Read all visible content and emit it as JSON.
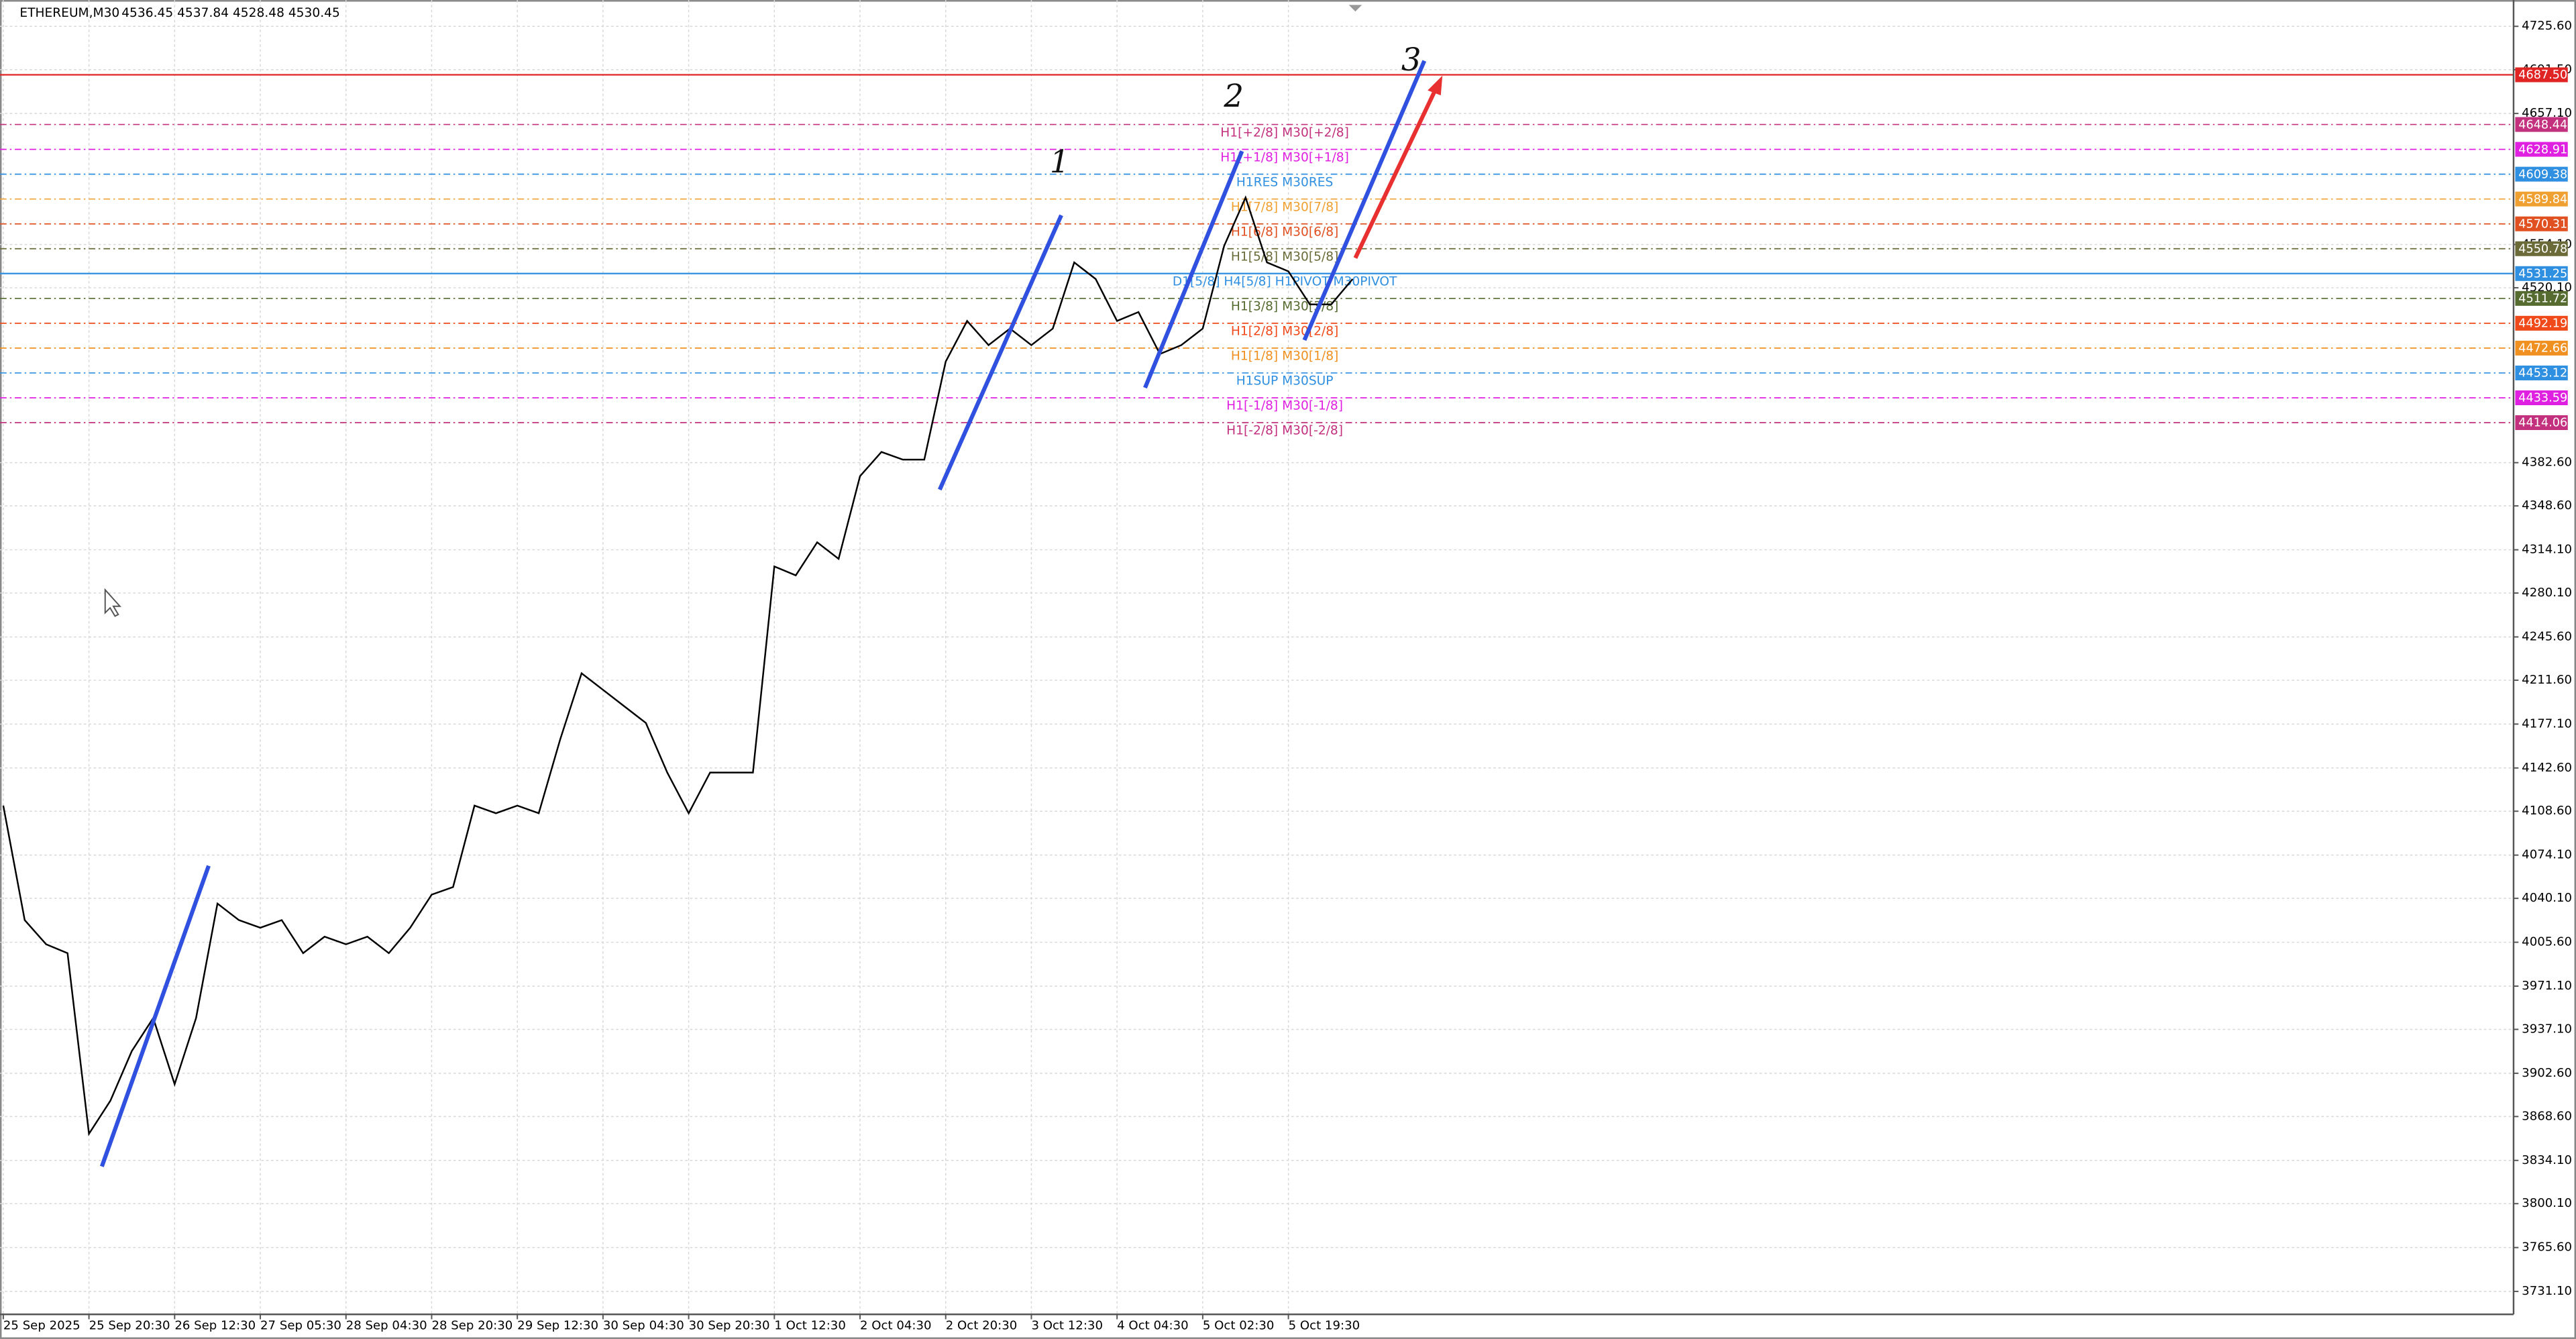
{
  "header": {
    "symbol": "ETHEREUM,M30",
    "ohlc": "4536.45 4537.84 4528.48 4530.45"
  },
  "chart_data": {
    "type": "line",
    "color": "#000000",
    "x": [
      0,
      8,
      16,
      24,
      32,
      40,
      48,
      56,
      64,
      72,
      80,
      88,
      96,
      104,
      112,
      120,
      128,
      136,
      144,
      152,
      160,
      168,
      176,
      184,
      192,
      200,
      208,
      216,
      224,
      232,
      240,
      248,
      256,
      264,
      272,
      280,
      288,
      296,
      304,
      312,
      320,
      328,
      336,
      344,
      352,
      360,
      368,
      376,
      384,
      392,
      400,
      408,
      416,
      424,
      432,
      440,
      448,
      456,
      464,
      472,
      480,
      488,
      496,
      504
    ],
    "values": [
      4113,
      4023,
      4004,
      3997,
      3855,
      3881,
      3920,
      3946,
      3894,
      3946,
      4036,
      4023,
      4017,
      4023,
      3997,
      4010,
      4004,
      4010,
      3997,
      4017,
      4043,
      4049,
      4113,
      4107,
      4113,
      4107,
      4165,
      4217,
      4204,
      4191,
      4178,
      4139,
      4107,
      4139,
      4139,
      4139,
      4301,
      4294,
      4320,
      4307,
      4372,
      4391,
      4385,
      4385,
      4462,
      4494,
      4475,
      4488,
      4475,
      4488,
      4540,
      4527,
      4494,
      4501,
      4468,
      4475,
      4488,
      4553,
      4591,
      4540,
      4533,
      4507,
      4507,
      4527
    ],
    "xlim": [
      0,
      937
    ],
    "xticks": [
      {
        "value": 0,
        "label": "25 Sep 2025"
      },
      {
        "value": 32,
        "label": "25 Sep 20:30"
      },
      {
        "value": 64,
        "label": "26 Sep 12:30"
      },
      {
        "value": 96,
        "label": "27 Sep 05:30"
      },
      {
        "value": 128,
        "label": "28 Sep 04:30"
      },
      {
        "value": 160,
        "label": "28 Sep 20:30"
      },
      {
        "value": 192,
        "label": "29 Sep 12:30"
      },
      {
        "value": 224,
        "label": "30 Sep 04:30"
      },
      {
        "value": 256,
        "label": "30 Sep 20:30"
      },
      {
        "value": 288,
        "label": "1 Oct 12:30"
      },
      {
        "value": 320,
        "label": "2 Oct 04:30"
      },
      {
        "value": 352,
        "label": "2 Oct 20:30"
      },
      {
        "value": 384,
        "label": "3 Oct 12:30"
      },
      {
        "value": 416,
        "label": "4 Oct 04:30"
      },
      {
        "value": 448,
        "label": "5 Oct 02:30"
      },
      {
        "value": 480,
        "label": "5 Oct 19:30"
      }
    ],
    "ylim": [
      3713.1,
      4742.4
    ],
    "yticks": [
      {
        "value": 4725.6,
        "label": "4725.60"
      },
      {
        "value": 4691.5,
        "label": "4691.50"
      },
      {
        "value": 4657.1,
        "label": "4657.10"
      },
      {
        "value": 4554.1,
        "label": "4554.10"
      },
      {
        "value": 4520.1,
        "label": "4520.10"
      },
      {
        "value": 4382.6,
        "label": "4382.60"
      },
      {
        "value": 4348.6,
        "label": "4348.60"
      },
      {
        "value": 4314.1,
        "label": "4314.10"
      },
      {
        "value": 4280.1,
        "label": "4280.10"
      },
      {
        "value": 4245.6,
        "label": "4245.60"
      },
      {
        "value": 4211.6,
        "label": "4211.60"
      },
      {
        "value": 4177.1,
        "label": "4177.10"
      },
      {
        "value": 4142.6,
        "label": "4142.60"
      },
      {
        "value": 4108.6,
        "label": "4108.60"
      },
      {
        "value": 4074.1,
        "label": "4074.10"
      },
      {
        "value": 4040.1,
        "label": "4040.10"
      },
      {
        "value": 4005.6,
        "label": "4005.60"
      },
      {
        "value": 3971.1,
        "label": "3971.10"
      },
      {
        "value": 3937.1,
        "label": "3937.10"
      },
      {
        "value": 3902.6,
        "label": "3902.60"
      },
      {
        "value": 3868.6,
        "label": "3868.60"
      },
      {
        "value": 3834.1,
        "label": "3834.10"
      },
      {
        "value": 3800.1,
        "label": "3800.10"
      },
      {
        "value": 3765.6,
        "label": "3765.60"
      },
      {
        "value": 3731.1,
        "label": "3731.10"
      }
    ],
    "grid": true,
    "levels": [
      {
        "value": 4687.5,
        "value_label": "4687.50",
        "color": "#e02424",
        "solid": true
      },
      {
        "value": 4648.44,
        "text": "H1[+2/8] M30[+2/8]",
        "color": "#c2307e"
      },
      {
        "value": 4628.91,
        "text": "H1[+1/8] M30[+1/8]",
        "color": "#e020e0"
      },
      {
        "value": 4609.38,
        "text": "H1RES M30RES",
        "color": "#2f8fe0"
      },
      {
        "value": 4589.84,
        "text": "H1[7/8] M30[7/8]",
        "color": "#f0a030"
      },
      {
        "value": 4570.31,
        "text": "H1[6/8] M30[6/8]",
        "color": "#e05020"
      },
      {
        "value": 4550.78,
        "text": "H1[5/8] M30[5/8]",
        "color": "#6b6b3a"
      },
      {
        "value": 4531.25,
        "text": "D1[5/8] H4[5/8] H1PIVOT M30PIVOT",
        "color": "#2f8fe0",
        "solid": true
      },
      {
        "value": 4511.72,
        "text": "H1[3/8] M30[3/8]",
        "color": "#556b2f"
      },
      {
        "value": 4492.19,
        "text": "H1[2/8] M30[2/8]",
        "color": "#f04a1a"
      },
      {
        "value": 4472.66,
        "text": "H1[1/8] M30[1/8]",
        "color": "#f09020"
      },
      {
        "value": 4453.12,
        "text": "H1SUP M30SUP",
        "color": "#2f8fe0"
      },
      {
        "value": 4433.59,
        "text": "H1[-1/8] M30[-1/8]",
        "color": "#e020e0"
      },
      {
        "value": 4414.06,
        "text": "H1[-2/8] M30[-2/8]",
        "color": "#c2307e"
      }
    ],
    "annotations": [
      "1",
      "2",
      "3"
    ]
  }
}
